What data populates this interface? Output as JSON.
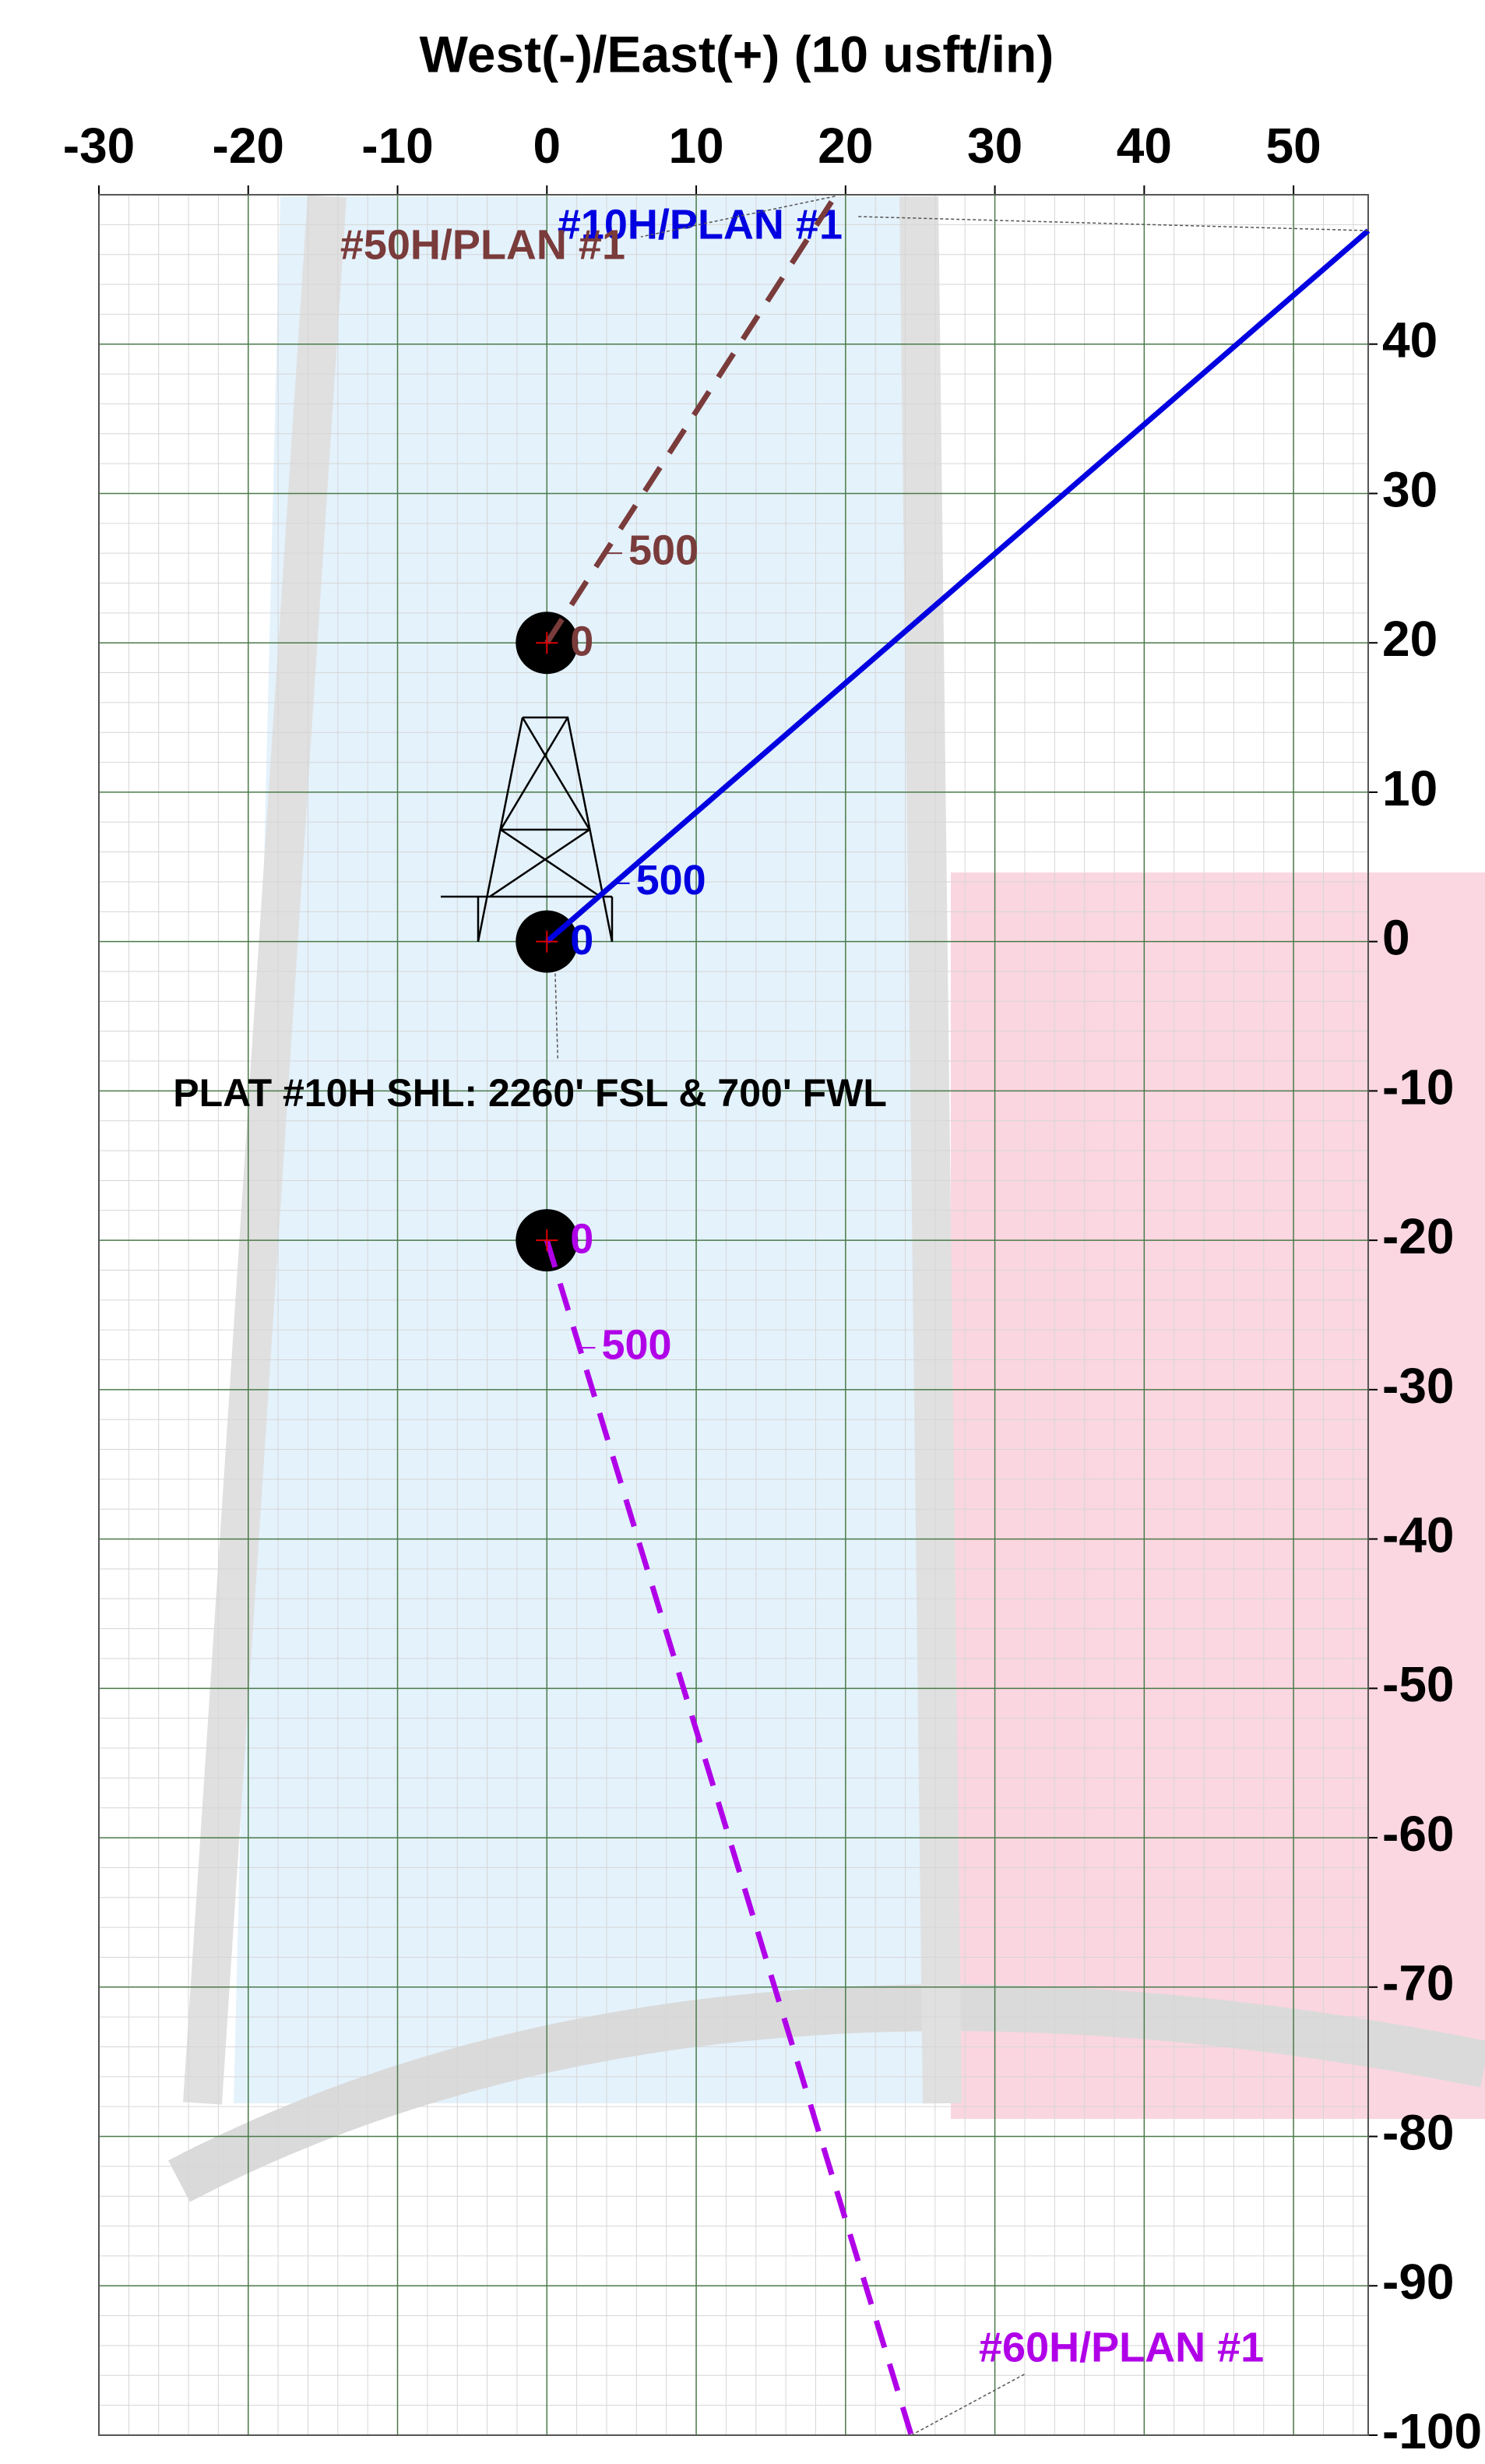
{
  "chart_data": {
    "type": "line",
    "title": "West(-)/East(+) (10 usft/in)",
    "xlim": [
      -30,
      55
    ],
    "ylim": [
      -100,
      50
    ],
    "xticks": [
      -30,
      -20,
      -10,
      0,
      10,
      20,
      30,
      40,
      50
    ],
    "yticks": [
      -100,
      -90,
      -80,
      -70,
      -60,
      -50,
      -40,
      -30,
      -20,
      -10,
      0,
      10,
      20,
      30,
      40
    ],
    "grid": true,
    "minor_grid": 2,
    "series": [
      {
        "name": "#10H/PLAN #1",
        "color": "#0000e0",
        "dash": false,
        "x": [
          0,
          55
        ],
        "y": [
          0,
          47.6
        ],
        "depth_marks": [
          {
            "md": 0,
            "x": 0,
            "y": 0
          },
          {
            "md": 500,
            "x": 4.5,
            "y": 3.9
          }
        ]
      },
      {
        "name": "#50H/PLAN #1",
        "color": "#7a3b3b",
        "dash": true,
        "x": [
          0,
          19.3
        ],
        "y": [
          20,
          49.9
        ],
        "depth_marks": [
          {
            "md": 0,
            "x": 0,
            "y": 20
          },
          {
            "md": 500,
            "x": 4.0,
            "y": 26
          }
        ]
      },
      {
        "name": "#60H/PLAN #1",
        "color": "#b000e8",
        "dash": true,
        "x": [
          0,
          24.4
        ],
        "y": [
          -20,
          -100
        ],
        "depth_marks": [
          {
            "md": 0,
            "x": 0,
            "y": -20
          },
          {
            "md": 500,
            "x": 2.2,
            "y": -27.2
          }
        ]
      }
    ],
    "annotations": [
      {
        "text": "PLAT #10H SHL: 2260' FSL & 700' FWL",
        "x": 0,
        "y": 0
      }
    ]
  }
}
